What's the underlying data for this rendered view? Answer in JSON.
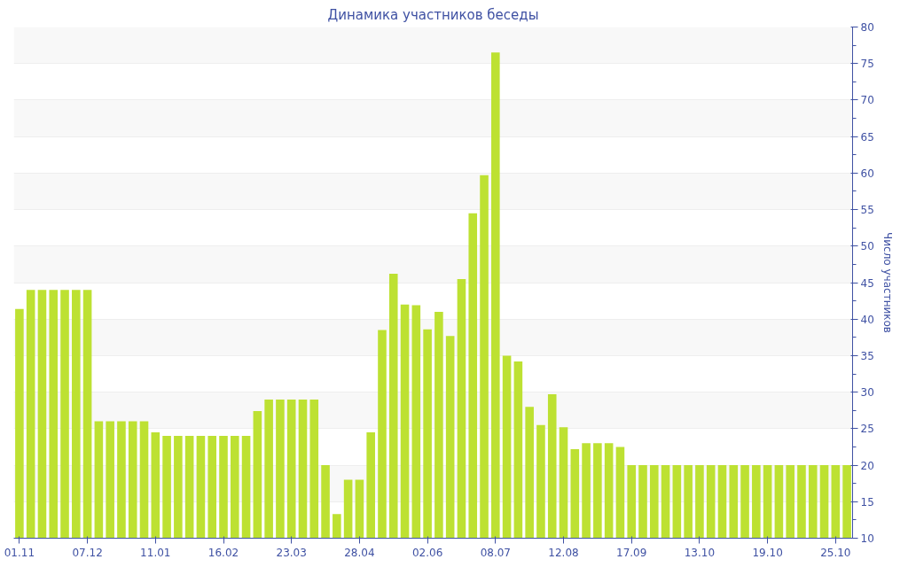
{
  "chart_data": {
    "type": "bar",
    "title": "Динамика участников беседы",
    "ylabel": "Число участников",
    "categories": [
      "01.11",
      null,
      null,
      null,
      null,
      null,
      "07.12",
      null,
      null,
      null,
      null,
      null,
      "11.01",
      null,
      null,
      null,
      null,
      null,
      "16.02",
      null,
      null,
      null,
      null,
      null,
      "23.03",
      null,
      null,
      null,
      null,
      null,
      "28.04",
      null,
      null,
      null,
      null,
      null,
      "02.06",
      null,
      null,
      null,
      null,
      null,
      "08.07",
      null,
      null,
      null,
      null,
      null,
      "12.08",
      null,
      null,
      null,
      null,
      null,
      "17.09",
      null,
      null,
      null,
      null,
      null,
      "13.10",
      null,
      null,
      null,
      null,
      null,
      "19.10",
      null,
      null,
      null,
      null,
      null,
      "25.10",
      null
    ],
    "series": [
      {
        "color": "#bde132",
        "values": [
          41.4,
          44,
          44,
          44,
          44,
          44,
          44,
          26,
          26,
          26,
          26,
          26,
          24.5,
          24,
          24,
          24,
          24,
          24,
          24,
          24,
          24,
          27.4,
          29,
          29,
          29,
          29,
          29,
          20,
          13.3,
          18,
          18,
          24.5,
          38.5,
          46.2,
          42,
          41.9,
          38.6,
          41,
          37.7,
          45.5,
          54.5,
          59.7,
          76.5,
          35,
          34.2,
          28,
          25.5,
          29.7,
          25.2,
          22.2,
          23,
          23,
          23,
          22.5,
          20,
          20,
          20,
          20,
          20,
          20,
          20,
          20,
          20,
          20,
          20,
          20,
          20,
          20,
          20,
          20,
          20,
          20,
          20,
          20
        ]
      }
    ],
    "ylim": [
      10,
      80
    ],
    "yticks": [
      10,
      15,
      20,
      25,
      30,
      35,
      40,
      45,
      50,
      55,
      60,
      65,
      70,
      75,
      80
    ],
    "grid": "y"
  }
}
